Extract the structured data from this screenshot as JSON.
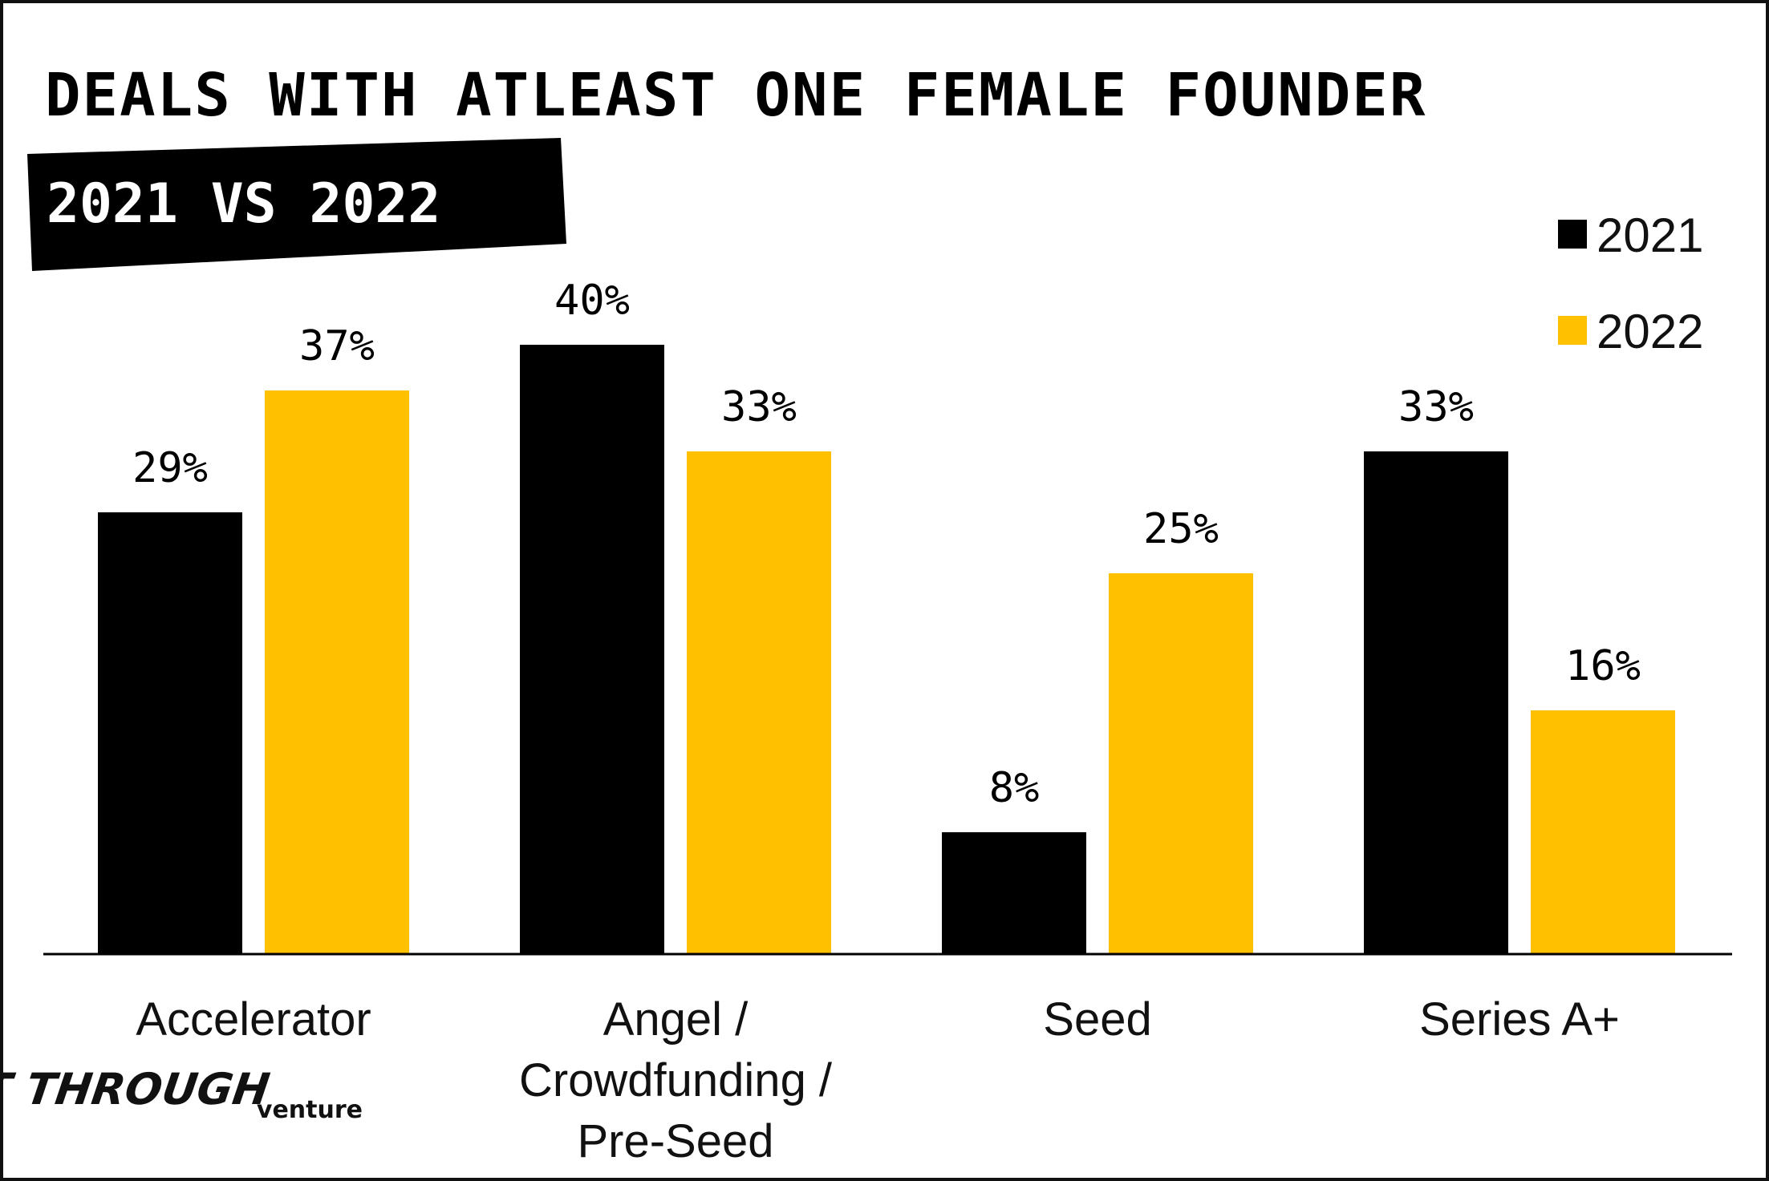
{
  "chart_data": {
    "type": "bar",
    "title": "DEALS WITH ATLEAST ONE FEMALE FOUNDER",
    "subtitle": "2021 VS 2022",
    "categories": [
      [
        "Accelerator"
      ],
      [
        "Angel /",
        "Crowdfunding /",
        "Pre-Seed"
      ],
      [
        "Seed"
      ],
      [
        "Series A+"
      ]
    ],
    "series": [
      {
        "name": "2021",
        "values": [
          29,
          40,
          8,
          33
        ],
        "labels": [
          "29%",
          "40%",
          "8%",
          "33%"
        ],
        "color": "#000000"
      },
      {
        "name": "2022",
        "values": [
          37,
          33,
          25,
          16
        ],
        "labels": [
          "37%",
          "33%",
          "25%",
          "16%"
        ],
        "color": "#FFC000"
      }
    ],
    "ylim": [
      0,
      40
    ],
    "grid": false,
    "legend_position": "top-right",
    "xlabel": "",
    "ylabel": ""
  },
  "branding": {
    "logo_main": "CUT THROUGH",
    "logo_sub": "venture"
  },
  "colors": {
    "accent": "#FFC000",
    "dark": "#000000"
  }
}
